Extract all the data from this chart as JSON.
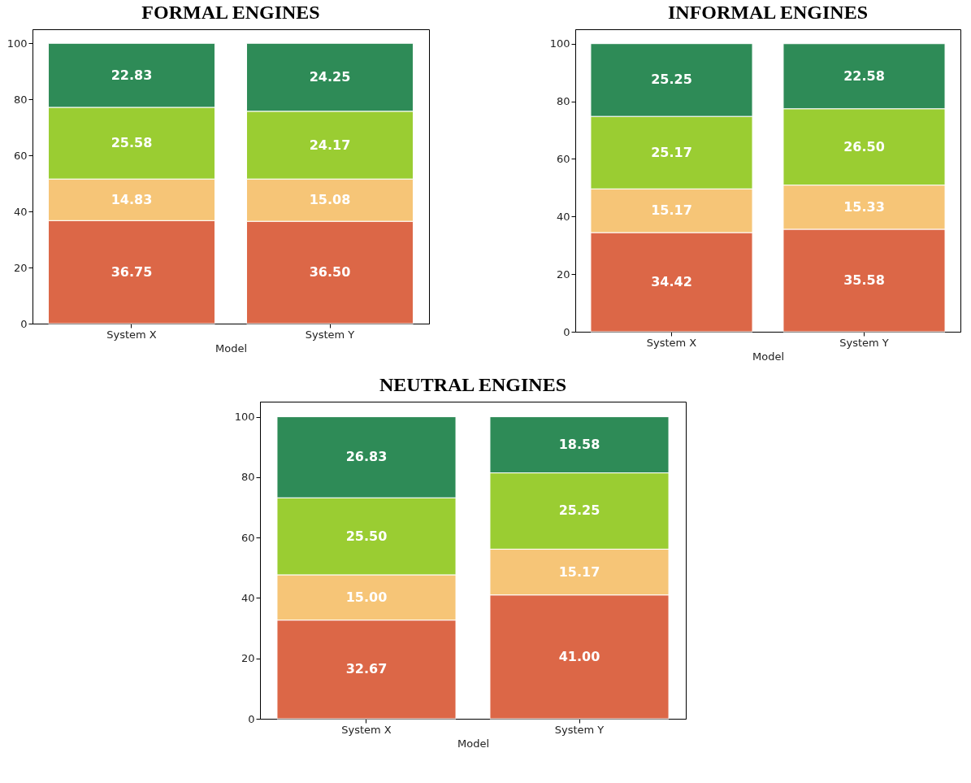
{
  "chart_data": [
    {
      "type": "bar",
      "stacked": true,
      "title": "FORMAL ENGINES",
      "xlabel": "Model",
      "categories": [
        "System X",
        "System Y"
      ],
      "ylim": [
        0,
        105
      ],
      "yticks": [
        0,
        20,
        40,
        60,
        80,
        100
      ],
      "grid": false,
      "series": [
        {
          "color": "#dc6747",
          "values": [
            36.75,
            36.5
          ],
          "value_labels": [
            "36.75",
            "36.50"
          ]
        },
        {
          "color": "#f6c577",
          "values": [
            14.83,
            15.08
          ],
          "value_labels": [
            "14.83",
            "15.08"
          ]
        },
        {
          "color": "#9acd32",
          "values": [
            25.58,
            24.17
          ],
          "value_labels": [
            "25.58",
            "24.17"
          ]
        },
        {
          "color": "#2e8b57",
          "values": [
            22.83,
            24.25
          ],
          "value_labels": [
            "22.83",
            "24.25"
          ]
        }
      ]
    },
    {
      "type": "bar",
      "stacked": true,
      "title": "INFORMAL ENGINES",
      "xlabel": "Model",
      "categories": [
        "System X",
        "System Y"
      ],
      "ylim": [
        0,
        105
      ],
      "yticks": [
        0,
        20,
        40,
        60,
        80,
        100
      ],
      "grid": false,
      "series": [
        {
          "color": "#dc6747",
          "values": [
            34.42,
            35.58
          ],
          "value_labels": [
            "34.42",
            "35.58"
          ]
        },
        {
          "color": "#f6c577",
          "values": [
            15.17,
            15.33
          ],
          "value_labels": [
            "15.17",
            "15.33"
          ]
        },
        {
          "color": "#9acd32",
          "values": [
            25.17,
            26.5
          ],
          "value_labels": [
            "25.17",
            "26.50"
          ]
        },
        {
          "color": "#2e8b57",
          "values": [
            25.25,
            22.58
          ],
          "value_labels": [
            "25.25",
            "22.58"
          ]
        }
      ]
    },
    {
      "type": "bar",
      "stacked": true,
      "title": "NEUTRAL ENGINES",
      "xlabel": "Model",
      "categories": [
        "System X",
        "System Y"
      ],
      "ylim": [
        0,
        105
      ],
      "yticks": [
        0,
        20,
        40,
        60,
        80,
        100
      ],
      "grid": false,
      "series": [
        {
          "color": "#dc6747",
          "values": [
            32.67,
            41.0
          ],
          "value_labels": [
            "32.67",
            "41.00"
          ]
        },
        {
          "color": "#f6c577",
          "values": [
            15.0,
            15.17
          ],
          "value_labels": [
            "15.00",
            "15.17"
          ]
        },
        {
          "color": "#9acd32",
          "values": [
            25.5,
            25.25
          ],
          "value_labels": [
            "25.50",
            "25.25"
          ]
        },
        {
          "color": "#2e8b57",
          "values": [
            26.83,
            18.58
          ],
          "value_labels": [
            "26.83",
            "18.58"
          ]
        }
      ]
    }
  ]
}
